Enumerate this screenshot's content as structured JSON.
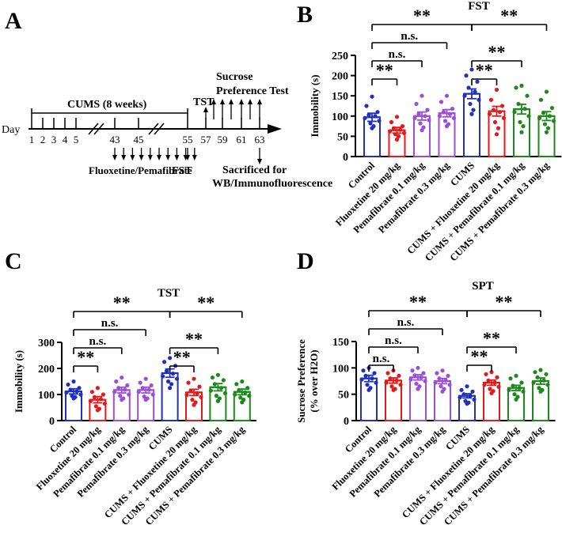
{
  "colors": {
    "blue": "#1f2fbf",
    "red": "#e31a1c",
    "purple": "#9b4fd6",
    "green": "#1a8a1a",
    "black": "#000000"
  },
  "timeline": {
    "panel_label": "A",
    "day_label": "Day",
    "cums_label": "CUMS (8 weeks)",
    "tst_label": "TST",
    "spt_label_1": "Sucrose",
    "spt_label_2": "Preference Test",
    "drug_label": "Fluoxetine/Pemafibrate",
    "fst_label": "FST",
    "sac_label_1": "Sacrificed for",
    "sac_label_2": "WB/Immunofluorescence",
    "days": [
      "1",
      "2",
      "3",
      "4",
      "5",
      "43",
      "45",
      "55",
      "57",
      "59",
      "61",
      "63"
    ]
  },
  "chart_data": [
    {
      "type": "bar",
      "panel_label": "B",
      "title": "FST",
      "ylabel": "Immobility (s)",
      "ylim": [
        0,
        250
      ],
      "yticks": [
        0,
        50,
        100,
        150,
        200,
        250
      ],
      "categories": [
        "Control",
        "Fluoxetine 20 mg/kg",
        "Pemafibrate 0.1 mg/kg",
        "Pemafibrate 0.3 mg/kg",
        "CUMS",
        "CUMS + Fluoxetine 20 mg/kg",
        "CUMS + Pemafibrate 0.1 mg/kg",
        "CUMS + Pemafibrate 0.3 mg/kg"
      ],
      "values": [
        97,
        65,
        100,
        107,
        155,
        112,
        117,
        100
      ],
      "errors": [
        10,
        7,
        10,
        9,
        12,
        12,
        12,
        11
      ],
      "colors": [
        "blue",
        "red",
        "purple",
        "purple",
        "blue",
        "red",
        "green",
        "green"
      ],
      "points": [
        [
          148,
          125,
          110,
          103,
          100,
          95,
          88,
          82,
          75,
          70
        ],
        [
          98,
          85,
          75,
          70,
          66,
          62,
          58,
          55,
          50,
          42
        ],
        [
          150,
          130,
          115,
          105,
          100,
          95,
          90,
          82,
          72,
          65
        ],
        [
          150,
          135,
          118,
          110,
          105,
          100,
          95,
          88,
          80,
          75
        ],
        [
          215,
          200,
          185,
          170,
          160,
          150,
          140,
          130,
          115,
          105
        ],
        [
          165,
          140,
          125,
          115,
          110,
          105,
          95,
          85,
          70,
          55
        ],
        [
          175,
          170,
          150,
          130,
          118,
          110,
          100,
          85,
          75,
          60
        ],
        [
          160,
          140,
          120,
          108,
          100,
          95,
          88,
          80,
          70,
          60
        ]
      ],
      "significance": [
        {
          "from": 0,
          "to": 1,
          "label": "**",
          "level": 0
        },
        {
          "from": 0,
          "to": 2,
          "label": "n.s.",
          "level": 1
        },
        {
          "from": 0,
          "to": 3,
          "label": "n.s.",
          "level": 2
        },
        {
          "from": 0,
          "to": 4,
          "label": "**",
          "level": 3
        },
        {
          "from": 4,
          "to": 5,
          "label": "**",
          "level": 0
        },
        {
          "from": 4,
          "to": 6,
          "label": "**",
          "level": 1
        },
        {
          "from": 4,
          "to": 7,
          "label": "**",
          "level": 3
        }
      ]
    },
    {
      "type": "bar",
      "panel_label": "C",
      "title": "TST",
      "ylabel": "Immobility (s)",
      "ylim": [
        0,
        300
      ],
      "yticks": [
        0,
        100,
        200,
        300
      ],
      "categories": [
        "Control",
        "Fluoxetine 20 mg/kg",
        "Pemafibrate 0.1 mg/kg",
        "Pemafibrate 0.3 mg/kg",
        "CUMS",
        "CUMS + Fluoxetine 20 mg/kg",
        "CUMS + Pemafibrate 0.1 mg/kg",
        "CUMS + Pemafibrate 0.3 mg/kg"
      ],
      "values": [
        112,
        80,
        117,
        117,
        182,
        108,
        128,
        110
      ],
      "errors": [
        10,
        12,
        11,
        11,
        16,
        12,
        14,
        11
      ],
      "colors": [
        "blue",
        "red",
        "purple",
        "purple",
        "blue",
        "red",
        "green",
        "green"
      ],
      "points": [
        [
          150,
          138,
          125,
          118,
          112,
          108,
          100,
          95,
          90,
          85
        ],
        [
          125,
          110,
          100,
          90,
          82,
          75,
          65,
          55,
          45,
          40
        ],
        [
          165,
          150,
          135,
          125,
          118,
          110,
          100,
          95,
          85,
          80
        ],
        [
          160,
          145,
          135,
          125,
          118,
          110,
          100,
          92,
          85,
          80
        ],
        [
          240,
          225,
          210,
          190,
          180,
          170,
          160,
          150,
          140,
          125
        ],
        [
          160,
          145,
          130,
          115,
          105,
          98,
          90,
          80,
          70,
          60
        ],
        [
          175,
          165,
          155,
          140,
          125,
          115,
          105,
          95,
          85,
          75
        ],
        [
          150,
          140,
          125,
          115,
          108,
          100,
          95,
          88,
          80,
          70
        ]
      ],
      "significance": [
        {
          "from": 0,
          "to": 1,
          "label": "**",
          "level": 0
        },
        {
          "from": 0,
          "to": 2,
          "label": "n.s.",
          "level": 1
        },
        {
          "from": 0,
          "to": 3,
          "label": "n.s.",
          "level": 2
        },
        {
          "from": 0,
          "to": 4,
          "label": "**",
          "level": 3
        },
        {
          "from": 4,
          "to": 5,
          "label": "**",
          "level": 0
        },
        {
          "from": 4,
          "to": 6,
          "label": "**",
          "level": 1
        },
        {
          "from": 4,
          "to": 7,
          "label": "**",
          "level": 3
        }
      ]
    },
    {
      "type": "bar",
      "panel_label": "D",
      "title": "SPT",
      "ylabel": "Sucrose Preference (% over H2O)",
      "ylabel_line1": "Sucrose Preference",
      "ylabel_line2": "(% over H2O)",
      "ylim": [
        0,
        150
      ],
      "yticks": [
        0,
        50,
        100,
        150
      ],
      "categories": [
        "Control",
        "Fluoxetine 20 mg/kg",
        "Pemafibrate 0.1 mg/kg",
        "Pemafibrate 0.3 mg/kg",
        "CUMS",
        "CUMS + Fluoxetine 20 mg/kg",
        "CUMS + Pemafibrate 0.1 mg/kg",
        "CUMS + Pemafibrate 0.3 mg/kg"
      ],
      "values": [
        80,
        76,
        82,
        75,
        47,
        72,
        62,
        75
      ],
      "errors": [
        6,
        5,
        5,
        5,
        4,
        5,
        5,
        6
      ],
      "colors": [
        "blue",
        "red",
        "purple",
        "purple",
        "blue",
        "red",
        "green",
        "green"
      ],
      "points": [
        [
          100,
          95,
          90,
          85,
          80,
          78,
          72,
          68,
          62,
          58
        ],
        [
          95,
          90,
          85,
          80,
          76,
          72,
          68,
          65,
          60,
          58
        ],
        [
          100,
          95,
          90,
          86,
          82,
          78,
          75,
          70,
          65,
          60
        ],
        [
          95,
          90,
          85,
          80,
          76,
          72,
          68,
          65,
          60,
          55
        ],
        [
          65,
          58,
          55,
          50,
          47,
          44,
          40,
          37,
          34,
          32
        ],
        [
          92,
          88,
          82,
          76,
          72,
          68,
          64,
          60,
          56,
          52
        ],
        [
          85,
          80,
          72,
          66,
          62,
          58,
          55,
          50,
          45,
          40
        ],
        [
          96,
          92,
          88,
          82,
          76,
          72,
          68,
          62,
          58,
          55
        ]
      ],
      "significance": [
        {
          "from": 0,
          "to": 1,
          "label": "n.s.",
          "level": 0
        },
        {
          "from": 0,
          "to": 2,
          "label": "n.s.",
          "level": 1
        },
        {
          "from": 0,
          "to": 3,
          "label": "n.s.",
          "level": 2
        },
        {
          "from": 0,
          "to": 4,
          "label": "**",
          "level": 3
        },
        {
          "from": 4,
          "to": 5,
          "label": "**",
          "level": 0
        },
        {
          "from": 4,
          "to": 6,
          "label": "**",
          "level": 1
        },
        {
          "from": 4,
          "to": 7,
          "label": "**",
          "level": 3
        }
      ]
    }
  ]
}
